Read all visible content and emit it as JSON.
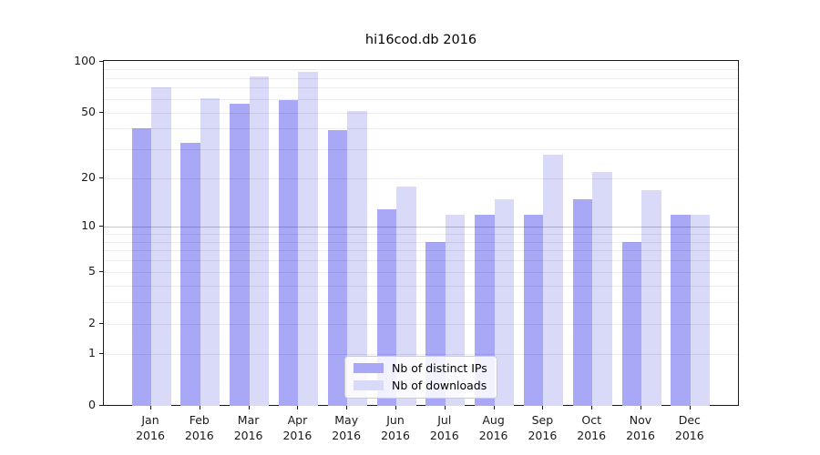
{
  "chart_data": {
    "type": "bar",
    "title": "hi16cod.db 2016",
    "categories": [
      "Jan",
      "Feb",
      "Mar",
      "Apr",
      "May",
      "Jun",
      "Jul",
      "Aug",
      "Sep",
      "Oct",
      "Nov",
      "Dec"
    ],
    "category_year": "2016",
    "series": [
      {
        "name": "Nb of distinct IPs",
        "color": "#a8a8f7",
        "values": [
          40,
          33,
          56,
          59,
          39,
          13,
          8,
          12,
          12,
          15,
          8,
          12
        ]
      },
      {
        "name": "Nb of downloads",
        "color": "#d9d9f8",
        "values": [
          70,
          61,
          82,
          87,
          51,
          18,
          12,
          15,
          28,
          22,
          17,
          12
        ]
      }
    ],
    "yscale": "log1p",
    "ylim": [
      0,
      100
    ],
    "ytick_labels": [
      100,
      50,
      20,
      10,
      5,
      2,
      1,
      0
    ],
    "minor_gridlines": [
      1,
      2,
      3,
      4,
      5,
      6,
      7,
      8,
      9,
      20,
      30,
      40,
      50,
      60,
      70,
      80,
      90
    ],
    "major_gridlines": [
      10
    ],
    "grid": true,
    "legend_position": "lower-center",
    "axis_color": "#1a1a1a"
  }
}
